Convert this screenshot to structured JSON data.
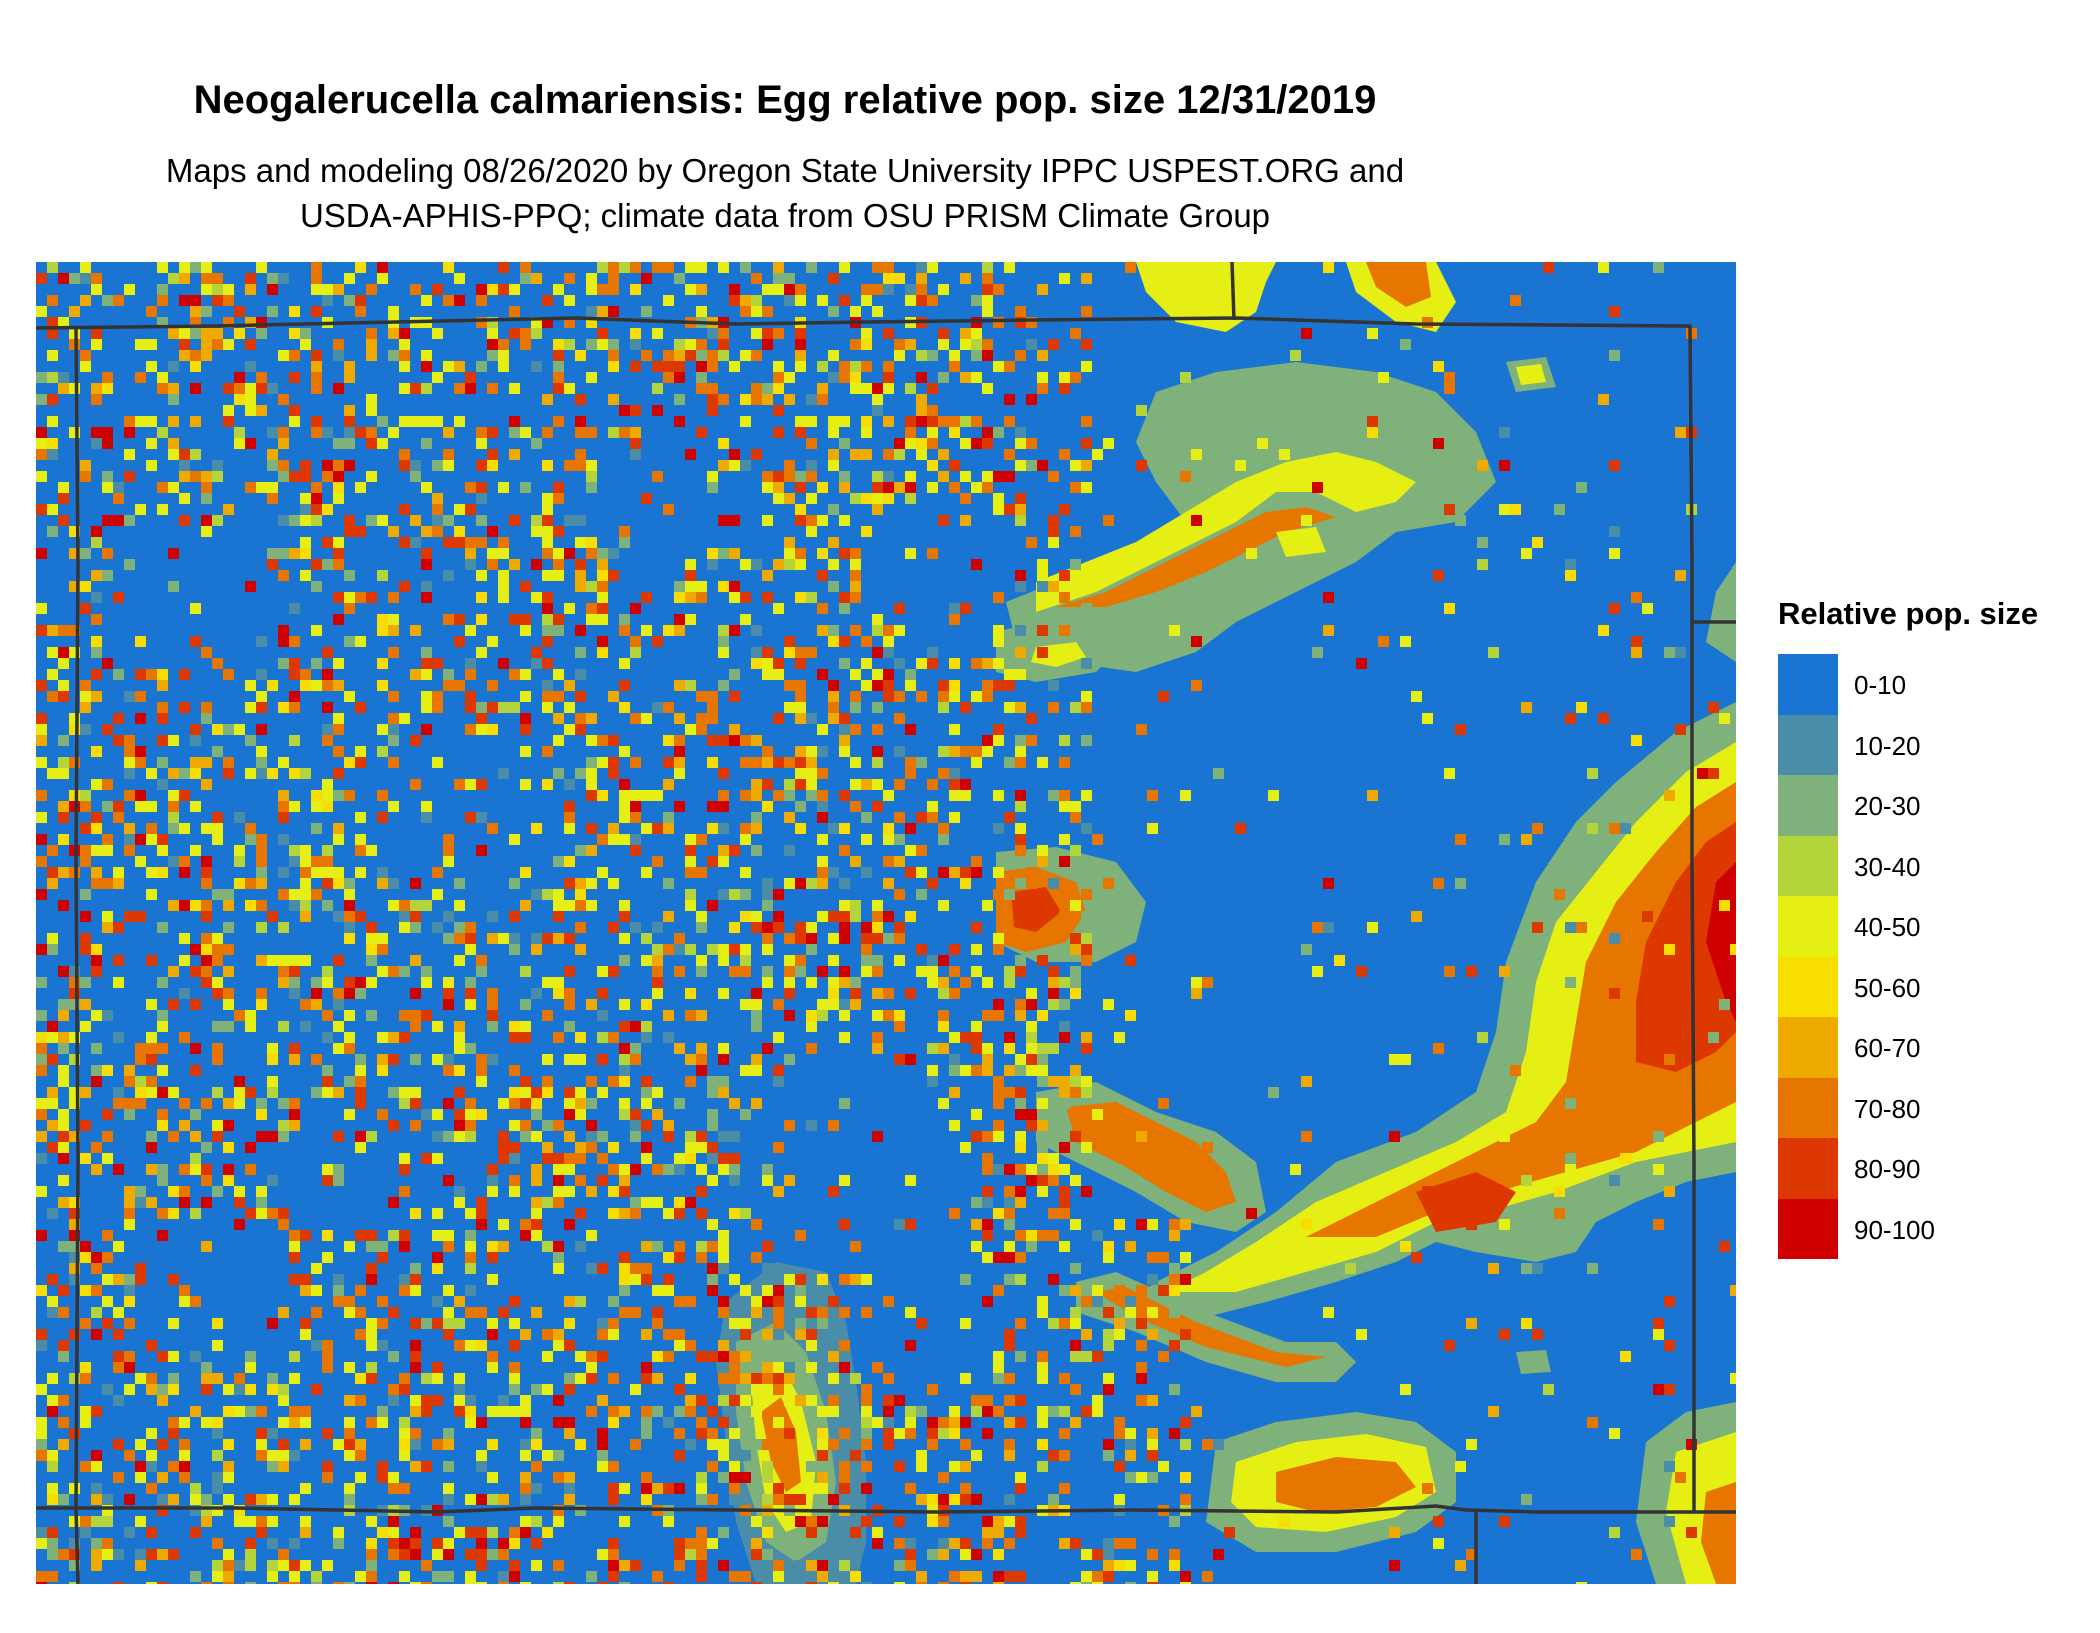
{
  "title": "Neogalerucella calmariensis: Egg relative pop. size 12/31/2019",
  "subtitle_line1": "Maps and modeling 08/26/2020 by Oregon State University IPPC USPEST.ORG and",
  "subtitle_line2": "USDA-APHIS-PPQ; climate data from OSU PRISM Climate Group",
  "legend": {
    "title": "Relative pop. size",
    "items": [
      {
        "label": "0-10",
        "color": "#1a74d2"
      },
      {
        "label": "10-20",
        "color": "#4a8da8"
      },
      {
        "label": "20-30",
        "color": "#7eb27a"
      },
      {
        "label": "30-40",
        "color": "#b4d43c"
      },
      {
        "label": "40-50",
        "color": "#e6ef14"
      },
      {
        "label": "50-60",
        "color": "#f7de00"
      },
      {
        "label": "60-70",
        "color": "#efaa00"
      },
      {
        "label": "70-80",
        "color": "#e67600"
      },
      {
        "label": "80-90",
        "color": "#dc3800"
      },
      {
        "label": "90-100",
        "color": "#cf0000"
      }
    ]
  },
  "map": {
    "background_class": "0-10",
    "border_color": "#333333"
  }
}
